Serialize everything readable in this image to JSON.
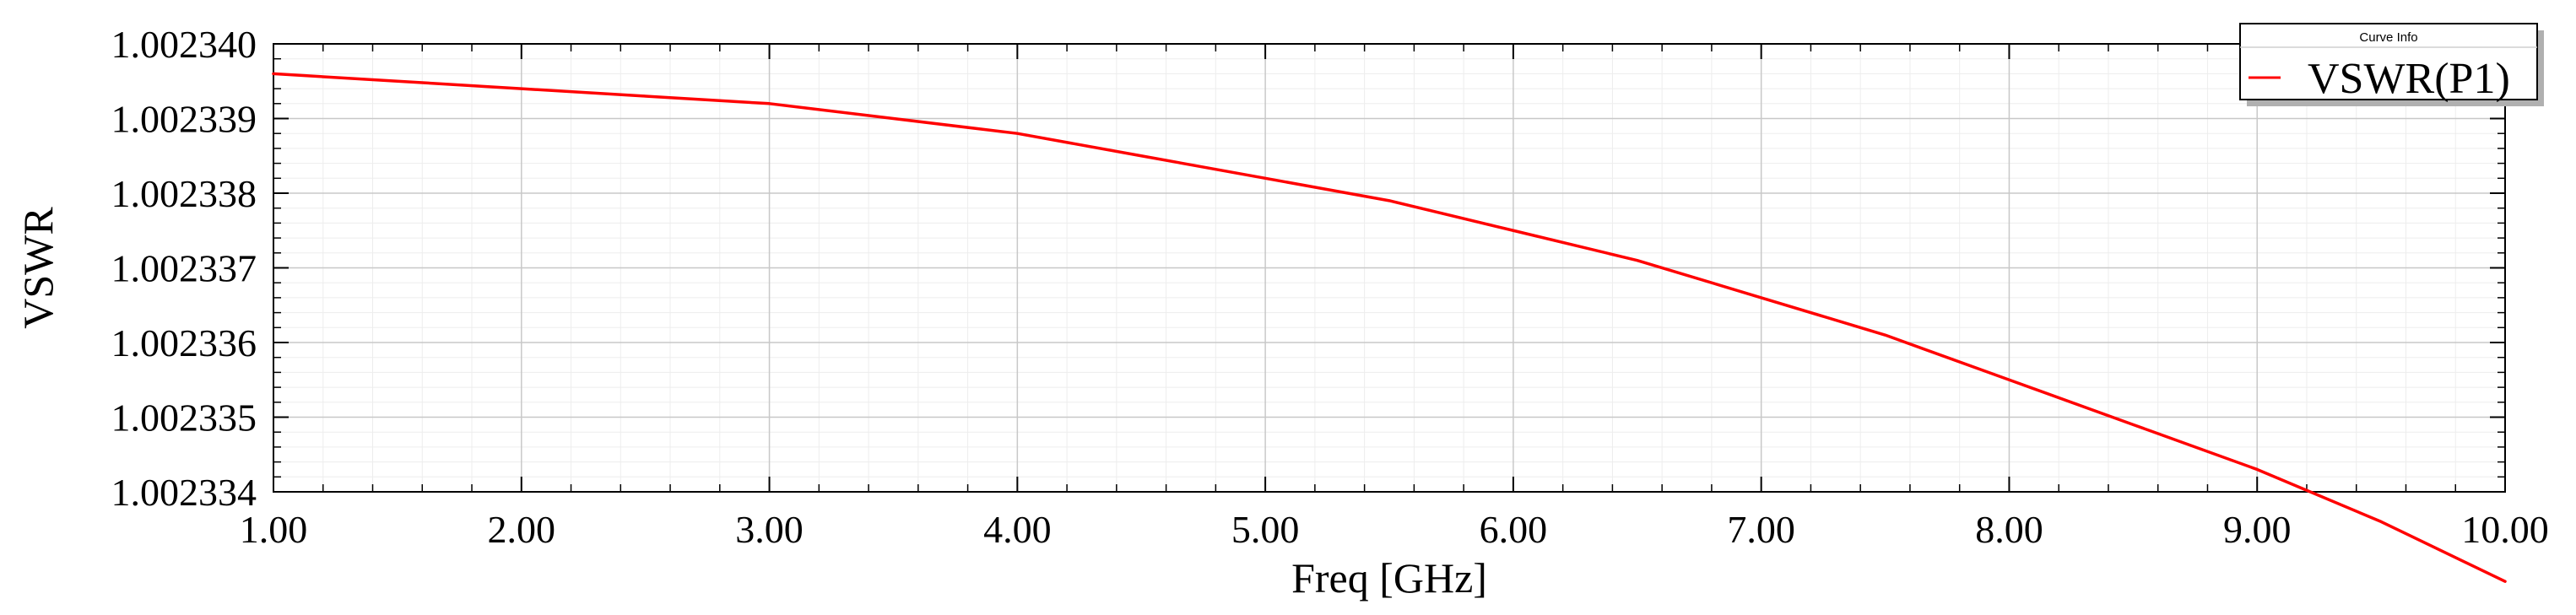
{
  "chart_data": {
    "type": "line",
    "xlabel": "Freq [GHz]",
    "ylabel": "VSWR",
    "xlim": [
      1.0,
      10.0
    ],
    "ylim": [
      1.002334,
      1.00234
    ],
    "x_ticks": [
      1,
      2,
      3,
      4,
      5,
      6,
      7,
      8,
      9,
      10
    ],
    "x_tick_labels": [
      "1.00",
      "2.00",
      "3.00",
      "4.00",
      "5.00",
      "6.00",
      "7.00",
      "8.00",
      "9.00",
      "10.00"
    ],
    "y_ticks": [
      1.002334,
      1.002335,
      1.002336,
      1.002337,
      1.002338,
      1.002339,
      1.00234
    ],
    "y_tick_labels": [
      "1.002334",
      "1.002335",
      "1.002336",
      "1.002337",
      "1.002338",
      "1.002339",
      "1.002340"
    ],
    "grid": true,
    "legend": {
      "title": "Curve Info",
      "position": "top-right"
    },
    "series": [
      {
        "name": "VSWR(P1)",
        "color": "#ff0000",
        "x": [
          1.0,
          1.5,
          2.0,
          2.5,
          3.0,
          3.5,
          4.0,
          4.5,
          5.0,
          5.5,
          6.0,
          6.5,
          7.0,
          7.5,
          8.0,
          8.5,
          9.0,
          9.5,
          10.0
        ],
        "y": [
          1.0023396,
          1.0023395,
          1.0023394,
          1.0023393,
          1.0023392,
          1.002339,
          1.0023388,
          1.0023385,
          1.0023382,
          1.0023379,
          1.0023375,
          1.0023371,
          1.0023366,
          1.0023361,
          1.0023355,
          1.0023349,
          1.0023343,
          1.0023336,
          1.0023328
        ]
      }
    ]
  }
}
